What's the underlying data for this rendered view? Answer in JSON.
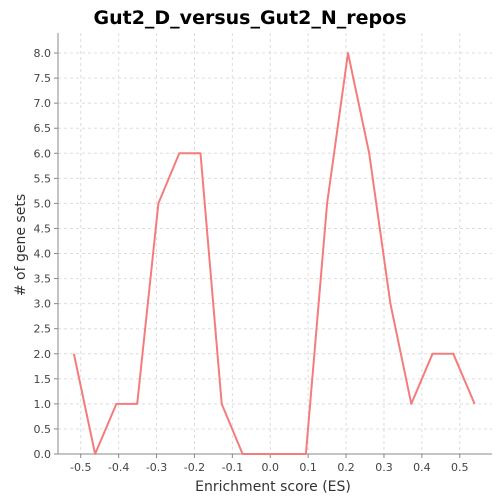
{
  "chart_data": {
    "type": "line",
    "title": "Gut2_D_versus_Gut2_N_repos",
    "xlabel": "Enrichment score (ES)",
    "ylabel": "# of gene sets",
    "xlim": [
      -0.56,
      0.585
    ],
    "ylim": [
      0,
      8.4
    ],
    "x_ticks": [
      -0.5,
      -0.4,
      -0.3,
      -0.2,
      -0.1,
      0.0,
      0.1,
      0.2,
      0.3,
      0.4,
      0.5
    ],
    "x_tick_labels": [
      "-0.5",
      "-0.4",
      "-0.3",
      "-0.2",
      "-0.1",
      "0.0",
      "0.1",
      "0.2",
      "0.3",
      "0.4",
      "0.5"
    ],
    "y_ticks": [
      0,
      0.5,
      1,
      1.5,
      2,
      2.5,
      3,
      3.5,
      4,
      4.5,
      5,
      5.5,
      6,
      6.5,
      7,
      7.5,
      8
    ],
    "y_tick_labels": [
      "0.0",
      "0.5",
      "1.0",
      "1.5",
      "2.0",
      "2.5",
      "3.0",
      "3.5",
      "4.0",
      "4.5",
      "5.0",
      "5.5",
      "6.0",
      "6.5",
      "7.0",
      "7.5",
      "8.0"
    ],
    "grid": true,
    "series": [
      {
        "color": "#f47c7c",
        "x": [
          -0.518,
          -0.462,
          -0.406,
          -0.351,
          -0.295,
          -0.24,
          -0.184,
          -0.128,
          -0.073,
          -0.017,
          0.039,
          0.094,
          0.15,
          0.205,
          0.261,
          0.317,
          0.372,
          0.428,
          0.483,
          0.539
        ],
        "y": [
          2,
          0,
          1,
          1,
          5,
          6,
          6,
          1,
          0,
          0,
          0,
          0,
          5,
          8,
          6,
          3,
          1,
          2,
          2,
          1
        ]
      }
    ]
  }
}
